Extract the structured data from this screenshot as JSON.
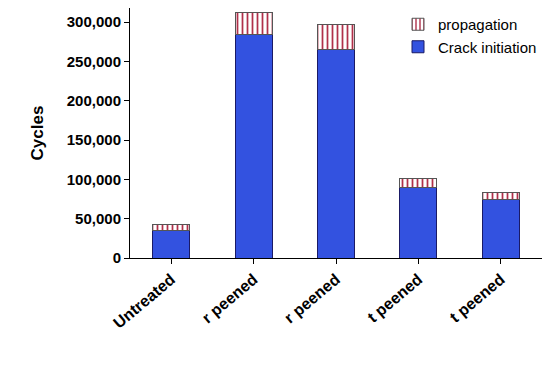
{
  "chart_data": {
    "type": "bar",
    "stacked": true,
    "grid": false,
    "legend": "upper right",
    "y_label": "Cycles",
    "categories": [
      "Untreated",
      "r peened",
      "r peened",
      "t peened",
      "t peened"
    ],
    "series": [
      {
        "name": "Crack initiation",
        "color": "#3352e0",
        "values": [
          35000,
          284000,
          265000,
          90000,
          75000
        ]
      },
      {
        "name": "propagation",
        "color": "#b0304a",
        "marker": "hatch",
        "values": [
          8000,
          28000,
          32000,
          11000,
          8000
        ]
      }
    ],
    "ylim": [
      0,
      318000
    ],
    "yticks": [
      0,
      {
        "value": 50000,
        "label": "50,000"
      },
      {
        "value": 100000,
        "label": "100,000"
      },
      {
        "value": 150000,
        "label": "150,000"
      },
      {
        "value": 200000,
        "label": "200,000"
      },
      {
        "value": 250000,
        "label": "250,000"
      },
      {
        "value": 300000,
        "label": "300,000"
      }
    ]
  }
}
